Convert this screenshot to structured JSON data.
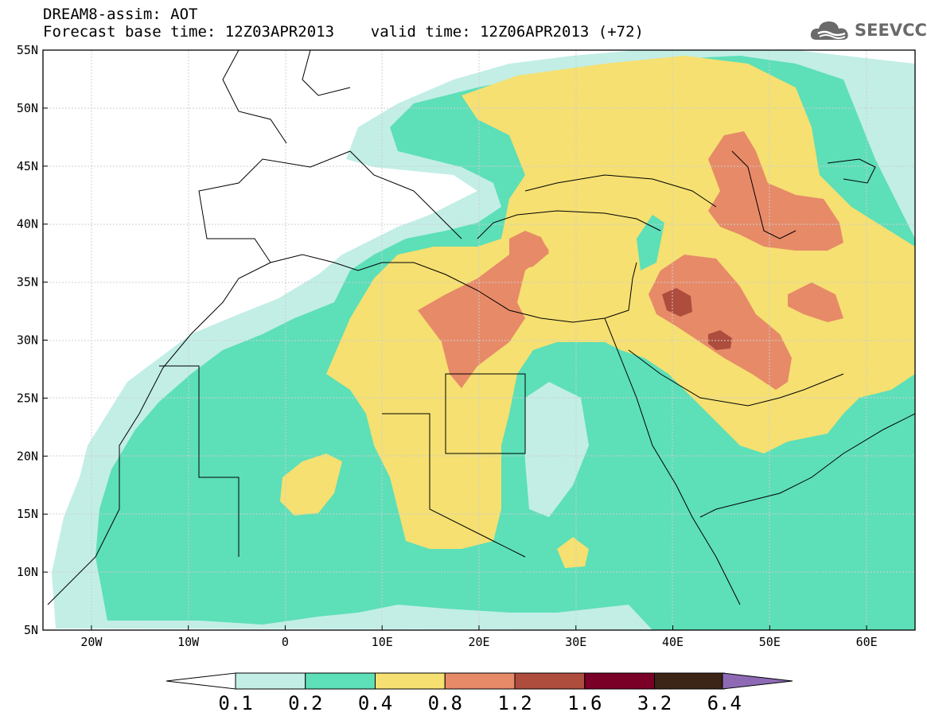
{
  "header": {
    "line1": "DREAM8-assim: AOT",
    "line2": "Forecast base time: 12Z03APR2013    valid time: 12Z06APR2013 (+72)"
  },
  "logo": {
    "text": "SEEVCCC",
    "icon": "cloud-icon"
  },
  "map": {
    "lon_range": [
      -25,
      65
    ],
    "lat_range": [
      5,
      55
    ],
    "lat_labels": [
      "55N",
      "50N",
      "45N",
      "40N",
      "35N",
      "30N",
      "25N",
      "20N",
      "15N",
      "10N",
      "5N"
    ],
    "lon_labels": [
      "20W",
      "10W",
      "0",
      "10E",
      "20E",
      "30E",
      "40E",
      "50E",
      "60E"
    ],
    "grid": true
  },
  "colorbar": {
    "labels": [
      "0.1",
      "0.2",
      "0.4",
      "0.8",
      "1.2",
      "1.6",
      "3.2",
      "6.4"
    ],
    "colors": [
      "#ffffff",
      "#c2eee6",
      "#5ddfb8",
      "#f5e071",
      "#e78a68",
      "#ae4d3d",
      "#7a0028",
      "#3c2416",
      "#8e6ab4"
    ]
  }
}
